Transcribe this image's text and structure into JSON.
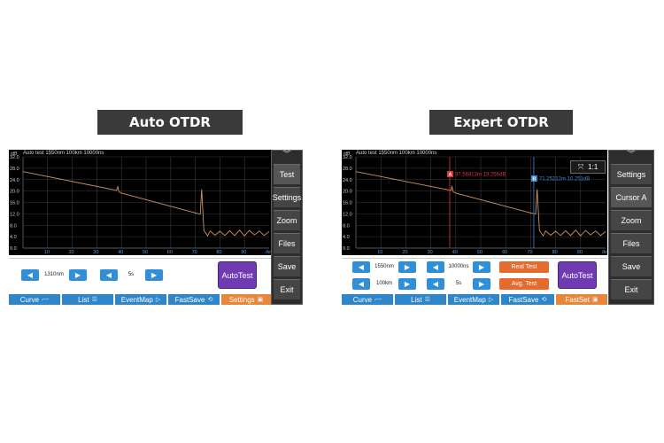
{
  "titles": {
    "left": "Auto OTDR",
    "right": "Expert OTDR"
  },
  "colors": {
    "trace": "#d2935c",
    "grid": "#3b3b3b",
    "accent_blue": "#2e86c9",
    "accent_orange": "#e8873b",
    "autotest_purple": "#6f3bb3",
    "cursor_a": "#d23a3a",
    "cursor_b": "#3c86d6"
  },
  "chart_data": [
    {
      "type": "line",
      "ylabel": "/dB",
      "xlabel": "/km",
      "y_ticks": [
        "32.0",
        "28.0",
        "24.0",
        "20.0",
        "16.0",
        "12.0",
        "8.0",
        "4.0",
        "0.0"
      ],
      "x_ticks": [
        "10",
        "20",
        "30",
        "40",
        "50",
        "60",
        "70",
        "80",
        "90",
        "/km"
      ],
      "ylim": [
        0,
        32
      ],
      "xlim": [
        0,
        100
      ],
      "grid": true,
      "series": [
        {
          "x": [
            0,
            37,
            38,
            38.5,
            39,
            40,
            71.5,
            72,
            72.6,
            73.5,
            75,
            76,
            78,
            80,
            82,
            84,
            86,
            88,
            90,
            92,
            94,
            96,
            98,
            100
          ],
          "y": [
            26.8,
            20.4,
            20.2,
            21.5,
            19.7,
            19.3,
            12.0,
            11.9,
            20.6,
            6.2,
            4.3,
            6.0,
            4.5,
            5.9,
            4.4,
            6.1,
            4.4,
            6.3,
            4.3,
            6.2,
            4.6,
            6.0,
            4.4,
            5.8
          ]
        }
      ]
    },
    {
      "type": "line",
      "ylabel": "/dB",
      "xlabel": "/km",
      "y_ticks": [
        "32.0",
        "28.0",
        "24.0",
        "20.0",
        "16.0",
        "12.0",
        "8.0",
        "4.0",
        "0.0"
      ],
      "x_ticks": [
        "10",
        "20",
        "30",
        "40",
        "50",
        "60",
        "70",
        "80",
        "90",
        "/km"
      ],
      "ylim": [
        0,
        32
      ],
      "xlim": [
        0,
        100
      ],
      "grid": true,
      "series": [
        {
          "x": [
            0,
            37,
            38,
            38.5,
            39,
            40,
            71.5,
            72,
            72.6,
            73.5,
            75,
            76,
            78,
            80,
            82,
            84,
            86,
            88,
            90,
            92,
            94,
            96,
            98,
            100
          ],
          "y": [
            26.8,
            20.4,
            20.2,
            21.5,
            19.7,
            19.3,
            12.0,
            11.9,
            20.6,
            6.2,
            4.3,
            6.0,
            4.5,
            5.9,
            4.4,
            6.1,
            4.4,
            6.3,
            4.3,
            6.2,
            4.6,
            6.0,
            4.4,
            5.8
          ]
        }
      ],
      "markers": [
        {
          "id": "A",
          "x_km": 37.56813,
          "label": "37.56813m  19.256dB"
        },
        {
          "id": "B",
          "x_km": 71.25212,
          "label": "71.25212m  10.251dB"
        }
      ]
    }
  ],
  "auto": {
    "header": "Auto test  1550nm  100km  10000ns",
    "side_buttons": [
      "Test",
      "Settings",
      "Zoom",
      "Files",
      "Save",
      "Exit"
    ],
    "wavelength": "1310nm",
    "duration": "5s",
    "autotest_label": "AutoTest",
    "tabs": [
      {
        "label": "Curve",
        "icon": "⌐~"
      },
      {
        "label": "List",
        "icon": "☰"
      },
      {
        "label": "EventMap",
        "icon": "▷"
      },
      {
        "label": "FastSave",
        "icon": "⟲"
      },
      {
        "label": "Settings",
        "icon": "▣"
      }
    ]
  },
  "expert": {
    "header": "Auto test  1550nm  100km  10000ns",
    "ratio": "1:1",
    "ratio_icon": "⤧",
    "side_buttons": [
      "Settings",
      "Cursor A",
      "Zoom",
      "Files",
      "Save",
      "Exit"
    ],
    "wavelength": "1550nm",
    "range": "100km",
    "pulse": "10000ns",
    "duration": "5s",
    "real_test": "Real Test",
    "avg_test": "Avg. Test",
    "autotest_label": "AutoTest",
    "tabs": [
      {
        "label": "Curve",
        "icon": "⌐~"
      },
      {
        "label": "List",
        "icon": "☰"
      },
      {
        "label": "EventMap",
        "icon": "▷"
      },
      {
        "label": "FastSave",
        "icon": "⟲"
      },
      {
        "label": "FastSet",
        "icon": "▣"
      }
    ]
  }
}
